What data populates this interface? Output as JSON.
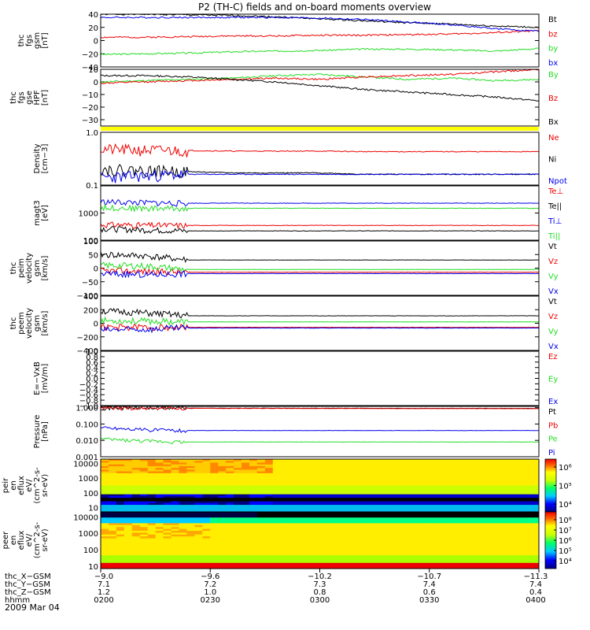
{
  "title": "P2 (TH-C) fields and on-board moments overview",
  "date_label": "2009 Mar 04",
  "colors": {
    "black": "#000000",
    "red": "#ee0000",
    "green": "#22dd22",
    "blue": "#0000ee",
    "yellow": "#ffff00"
  },
  "chart_data": [
    {
      "type": "line",
      "id": "p1",
      "ylabel_lines": [
        "thc",
        "fgs",
        "gsm",
        "[nT]"
      ],
      "ylim": [
        -40,
        40
      ],
      "yticks": [
        "40",
        "20",
        "0",
        "−20",
        "−40"
      ],
      "yticks_values": [
        40,
        20,
        0,
        -20,
        -40
      ],
      "series": [
        {
          "name": "Bt",
          "color": "black",
          "values": [
            40,
            40,
            39,
            38,
            36,
            33,
            30,
            27,
            25,
            22,
            20
          ]
        },
        {
          "name": "bz",
          "color": "red",
          "values": [
            5,
            5,
            6,
            7,
            7,
            8,
            8,
            9,
            10,
            12,
            15
          ]
        },
        {
          "name": "by",
          "color": "green",
          "values": [
            -21,
            -20,
            -19,
            -17,
            -16,
            -15,
            -13,
            -13,
            -14,
            -16,
            -12
          ]
        },
        {
          "name": "bx",
          "color": "blue",
          "values": [
            35,
            35,
            35,
            35,
            35,
            34,
            32,
            28,
            24,
            18,
            14
          ]
        }
      ]
    },
    {
      "type": "line",
      "id": "p2",
      "ylabel_lines": [
        "thc",
        "fgs",
        "gse",
        "HPF",
        "[nT]"
      ],
      "ylim": [
        -35,
        10
      ],
      "yticks": [
        "10",
        "0",
        "−10",
        "−20",
        "−30"
      ],
      "yticks_values": [
        10,
        0,
        -10,
        -20,
        -30
      ],
      "series": [
        {
          "name": "By",
          "color": "green",
          "values": [
            0,
            1,
            2,
            3,
            5,
            6,
            4,
            2,
            3,
            1,
            2
          ]
        },
        {
          "name": "Bz",
          "color": "red",
          "values": [
            -1,
            0,
            1,
            2,
            3,
            2,
            4,
            5,
            6,
            8,
            10
          ]
        },
        {
          "name": "Bx",
          "color": "black",
          "values": [
            5,
            5,
            4,
            2,
            0,
            -3,
            -6,
            -8,
            -10,
            -12,
            -15
          ]
        }
      ]
    },
    {
      "type": "line",
      "id": "p3",
      "scale": "log",
      "ylabel_lines": [
        "Density",
        "[cm−3]"
      ],
      "ylim": [
        0.1,
        1.0
      ],
      "yticks": [
        "1.0",
        "0.1"
      ],
      "yticks_values": [
        1.0,
        0.1
      ],
      "series": [
        {
          "name": "Ne",
          "color": "red",
          "values": [
            0.48,
            0.46,
            0.45,
            0.44,
            0.44,
            0.44,
            0.43,
            0.43,
            0.43,
            0.43,
            0.43
          ]
        },
        {
          "name": "Ni",
          "color": "black",
          "values": [
            0.2,
            0.19,
            0.18,
            0.17,
            0.17,
            0.17,
            0.16,
            0.16,
            0.16,
            0.16,
            0.16
          ]
        },
        {
          "name": "Npot",
          "color": "blue",
          "values": [
            0.14,
            0.15,
            0.16,
            0.16,
            0.16,
            0.16,
            0.16,
            0.16,
            0.16,
            0.16,
            0.16
          ]
        }
      ]
    },
    {
      "type": "line",
      "id": "p4",
      "scale": "log",
      "ylabel_lines": [
        "magt3",
        "[eV]"
      ],
      "ylim": [
        100,
        10000
      ],
      "yticks": [
        "1000",
        "100"
      ],
      "yticks_values": [
        1000,
        100
      ],
      "series": [
        {
          "name": "Te⊥",
          "color": "red",
          "values": [
            380,
            360,
            350,
            350,
            350,
            350,
            350,
            350,
            350,
            350,
            350
          ]
        },
        {
          "name": "Te||",
          "color": "black",
          "values": [
            270,
            240,
            220,
            220,
            220,
            220,
            220,
            220,
            220,
            220,
            220
          ]
        },
        {
          "name": "Ti⊥",
          "color": "blue",
          "values": [
            2600,
            2400,
            2300,
            2300,
            2300,
            2300,
            2300,
            2300,
            2300,
            2300,
            2300
          ]
        },
        {
          "name": "Ti||",
          "color": "green",
          "values": [
            1600,
            1500,
            1500,
            1500,
            1500,
            1500,
            1500,
            1500,
            1500,
            1500,
            1500
          ]
        }
      ]
    },
    {
      "type": "line",
      "id": "p5",
      "ylabel_lines": [
        "thc",
        "peim",
        "velocity",
        "gsm",
        "[km/s]"
      ],
      "ylim": [
        -100,
        100
      ],
      "yticks": [
        "100",
        "50",
        "0",
        "−50",
        "−100"
      ],
      "yticks_values": [
        100,
        50,
        0,
        -50,
        -100
      ],
      "series": [
        {
          "name": "Vt",
          "color": "black",
          "values": [
            50,
            45,
            30,
            30,
            30,
            30,
            30,
            30,
            30,
            30,
            30
          ]
        },
        {
          "name": "Vz",
          "color": "red",
          "values": [
            -10,
            -12,
            -15,
            -15,
            -15,
            -15,
            -15,
            -15,
            -15,
            -15,
            -15
          ]
        },
        {
          "name": "Vy",
          "color": "green",
          "values": [
            10,
            8,
            -5,
            -5,
            -5,
            -5,
            -5,
            -5,
            -5,
            -5,
            -5
          ]
        },
        {
          "name": "Vx",
          "color": "blue",
          "values": [
            -20,
            -25,
            -20,
            -20,
            -20,
            -20,
            -20,
            -20,
            -20,
            -20,
            -20
          ]
        }
      ]
    },
    {
      "type": "line",
      "id": "p6",
      "ylabel_lines": [
        "thc",
        "peem",
        "velocity",
        "gsm",
        "[km/s]"
      ],
      "ylim": [
        -400,
        400
      ],
      "yticks": [
        "400",
        "200",
        "0",
        "−200",
        "−400"
      ],
      "yticks_values": [
        400,
        200,
        0,
        -200,
        -400
      ],
      "series": [
        {
          "name": "Vt",
          "color": "black",
          "values": [
            180,
            150,
            110,
            110,
            110,
            110,
            110,
            110,
            110,
            110,
            110
          ]
        },
        {
          "name": "Vz",
          "color": "red",
          "values": [
            -60,
            -60,
            -60,
            -60,
            -60,
            -60,
            -60,
            -60,
            -60,
            -60,
            -60
          ]
        },
        {
          "name": "Vy",
          "color": "green",
          "values": [
            40,
            30,
            20,
            20,
            20,
            20,
            20,
            20,
            20,
            20,
            20
          ]
        },
        {
          "name": "Vx",
          "color": "blue",
          "values": [
            -100,
            -90,
            -70,
            -70,
            -70,
            -70,
            -70,
            -70,
            -70,
            -70,
            -70
          ]
        }
      ]
    },
    {
      "type": "line",
      "id": "p7",
      "ylabel_lines": [
        "E=−VxB",
        "[mV/m]"
      ],
      "ylim": [
        -1.0,
        1.0
      ],
      "yticks": [
        "1.0",
        "0.8",
        "0.6",
        "0.4",
        "0.2",
        "0.0",
        "−0.2",
        "−0.4",
        "−0.6",
        "−0.8",
        "−1.0"
      ],
      "yticks_values": [
        1.0,
        0.8,
        0.6,
        0.4,
        0.2,
        0.0,
        -0.2,
        -0.4,
        -0.6,
        -0.8,
        -1.0
      ],
      "series": [
        {
          "name": "Ez",
          "color": "red",
          "values": []
        },
        {
          "name": "Ey",
          "color": "green",
          "values": []
        },
        {
          "name": "Ex",
          "color": "blue",
          "values": []
        }
      ]
    },
    {
      "type": "line",
      "id": "p8",
      "scale": "log",
      "ylabel_lines": [
        "Pressure",
        "[nPa]"
      ],
      "ylim": [
        0.001,
        1.2
      ],
      "yticks": [
        "1.000",
        "0.100",
        "0.010",
        "0.001"
      ],
      "yticks_values": [
        1.0,
        0.1,
        0.01,
        0.001
      ],
      "series": [
        {
          "name": "Pt",
          "color": "black",
          "values": [
            0.95,
            0.95,
            0.94,
            0.93,
            0.93,
            0.92,
            0.92,
            0.91,
            0.91,
            0.9,
            0.9
          ]
        },
        {
          "name": "Pb",
          "color": "red",
          "values": [
            0.92,
            0.92,
            0.91,
            0.9,
            0.9,
            0.89,
            0.89,
            0.88,
            0.88,
            0.87,
            0.87
          ]
        },
        {
          "name": "Pe",
          "color": "green",
          "values": [
            0.012,
            0.009,
            0.008,
            0.008,
            0.008,
            0.008,
            0.008,
            0.008,
            0.008,
            0.008,
            0.008
          ]
        },
        {
          "name": "Pi",
          "color": "blue",
          "values": [
            0.06,
            0.045,
            0.04,
            0.04,
            0.04,
            0.04,
            0.04,
            0.04,
            0.04,
            0.04,
            0.04
          ]
        }
      ]
    },
    {
      "type": "heatmap",
      "id": "p9",
      "ylabel_lines": [
        "thc",
        "peir",
        "en",
        "eflux",
        "eV/",
        "(cm^2-s-",
        "sr-eV)"
      ],
      "ylim": [
        5,
        20000
      ],
      "yticks": [
        "10000",
        "1000",
        "100",
        "10"
      ],
      "yticks_values": [
        10000,
        1000,
        100,
        10
      ],
      "colorbar_ticks": [
        "10⁶",
        "10⁵",
        "10⁴"
      ],
      "colorbar_ticks_values": [
        1000000,
        100000,
        10000
      ]
    },
    {
      "type": "heatmap",
      "id": "p10",
      "ylabel_lines": [
        "thc",
        "peer",
        "en",
        "eflux",
        "eV/",
        "(cm^2-s-",
        "sr-eV)"
      ],
      "ylim": [
        7,
        20000
      ],
      "yticks": [
        "10000",
        "1000",
        "100",
        "10"
      ],
      "yticks_values": [
        10000,
        1000,
        100,
        10
      ],
      "colorbar_ticks": [
        "10⁸",
        "10⁷",
        "10⁶",
        "10⁵",
        "10⁴"
      ],
      "colorbar_ticks_values": [
        100000000,
        10000000,
        1000000,
        100000,
        10000
      ]
    }
  ],
  "x_axis": {
    "x_gsm": [
      "−9.0",
      "−9.6",
      "−10.2",
      "−10.7",
      "−11.3"
    ],
    "y_gsm": [
      "7.1",
      "7.2",
      "7.3",
      "7.4",
      "7.4"
    ],
    "z_gsm": [
      "1.2",
      "1.0",
      "0.8",
      "0.6",
      "0.4"
    ],
    "hhmm": [
      "0200",
      "0230",
      "0300",
      "0330",
      "0400"
    ]
  },
  "row_labels": [
    "thc_X−GSM",
    "thc_Y−GSM",
    "thc_Z−GSM",
    "hhmm"
  ]
}
